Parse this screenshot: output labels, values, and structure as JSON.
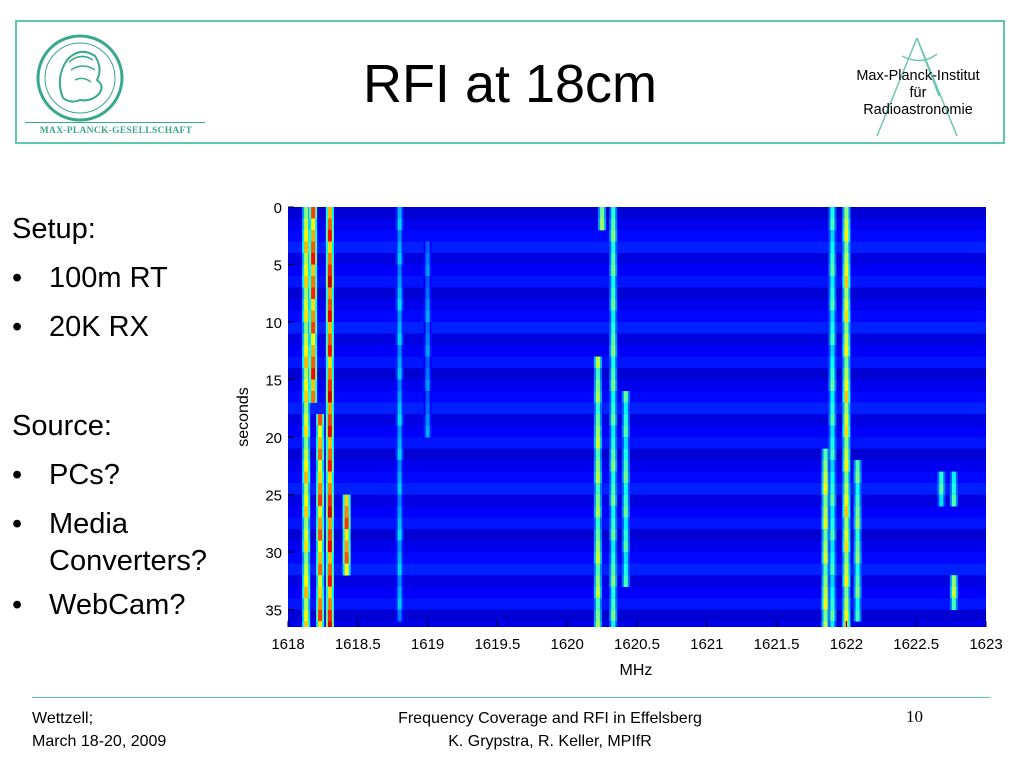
{
  "header": {
    "title": "RFI at 18cm",
    "left_logo": {
      "icon": "minerva-icon",
      "text": "MAX-PLANCK-GESELLSCHAFT"
    },
    "right_logo": {
      "icon": "radio-telescope-icon",
      "lines": [
        "Max-Planck-Institut",
        "für",
        "Radioastronomie"
      ]
    },
    "accent_color": "#5fc7b0"
  },
  "content": {
    "setup_heading": "Setup:",
    "setup_items": [
      "100m RT",
      "20K RX"
    ],
    "source_heading": "Source:",
    "source_items": [
      "PCs?",
      "Media",
      "Converters?",
      "WebCam?"
    ]
  },
  "chart_data": {
    "type": "heatmap",
    "xlabel": "MHz",
    "ylabel": "seconds",
    "xlim": [
      1618,
      1623
    ],
    "ylim": [
      0,
      36.5
    ],
    "y_inverted": true,
    "x_ticks": [
      "1618",
      "1618.5",
      "1619",
      "1619.5",
      "1620",
      "1620.5",
      "1621",
      "1621.5",
      "1622",
      "1622.5",
      "1623"
    ],
    "y_ticks": [
      "0",
      "5",
      "10",
      "15",
      "20",
      "25",
      "30",
      "35"
    ],
    "colormap": "jet",
    "background_level": 0.12,
    "signals": [
      {
        "freq": 1618.13,
        "t_start": 0,
        "t_end": 36.5,
        "level": 0.72
      },
      {
        "freq": 1618.18,
        "t_start": 0,
        "t_end": 17,
        "level": 0.9
      },
      {
        "freq": 1618.23,
        "t_start": 18,
        "t_end": 36.5,
        "level": 0.85
      },
      {
        "freq": 1618.3,
        "t_start": 0,
        "t_end": 36.5,
        "level": 0.95
      },
      {
        "freq": 1618.42,
        "t_start": 25,
        "t_end": 32,
        "level": 0.85
      },
      {
        "freq": 1618.8,
        "t_start": 0,
        "t_end": 36,
        "level": 0.35
      },
      {
        "freq": 1619.0,
        "t_start": 3,
        "t_end": 20,
        "level": 0.3
      },
      {
        "freq": 1620.22,
        "t_start": 13,
        "t_end": 36.5,
        "level": 0.6
      },
      {
        "freq": 1620.25,
        "t_start": 0,
        "t_end": 2,
        "level": 0.55
      },
      {
        "freq": 1620.33,
        "t_start": 0,
        "t_end": 36.5,
        "level": 0.52
      },
      {
        "freq": 1620.42,
        "t_start": 16,
        "t_end": 33,
        "level": 0.5
      },
      {
        "freq": 1621.85,
        "t_start": 21,
        "t_end": 36.5,
        "level": 0.65
      },
      {
        "freq": 1621.9,
        "t_start": 0,
        "t_end": 36.5,
        "level": 0.48
      },
      {
        "freq": 1622.0,
        "t_start": 0,
        "t_end": 36.5,
        "level": 0.7
      },
      {
        "freq": 1622.08,
        "t_start": 22,
        "t_end": 36,
        "level": 0.55
      },
      {
        "freq": 1622.68,
        "t_start": 23,
        "t_end": 26,
        "level": 0.5
      },
      {
        "freq": 1622.77,
        "t_start": 23,
        "t_end": 26,
        "level": 0.5
      },
      {
        "freq": 1622.77,
        "t_start": 32,
        "t_end": 35,
        "level": 0.6
      }
    ]
  },
  "footer": {
    "left_lines": [
      "Wettzell;",
      "March 18-20, 2009"
    ],
    "center_lines": [
      "Frequency Coverage and RFI in Effelsberg",
      "K. Grypstra, R. Keller, MPIfR"
    ],
    "page_number": "10"
  }
}
